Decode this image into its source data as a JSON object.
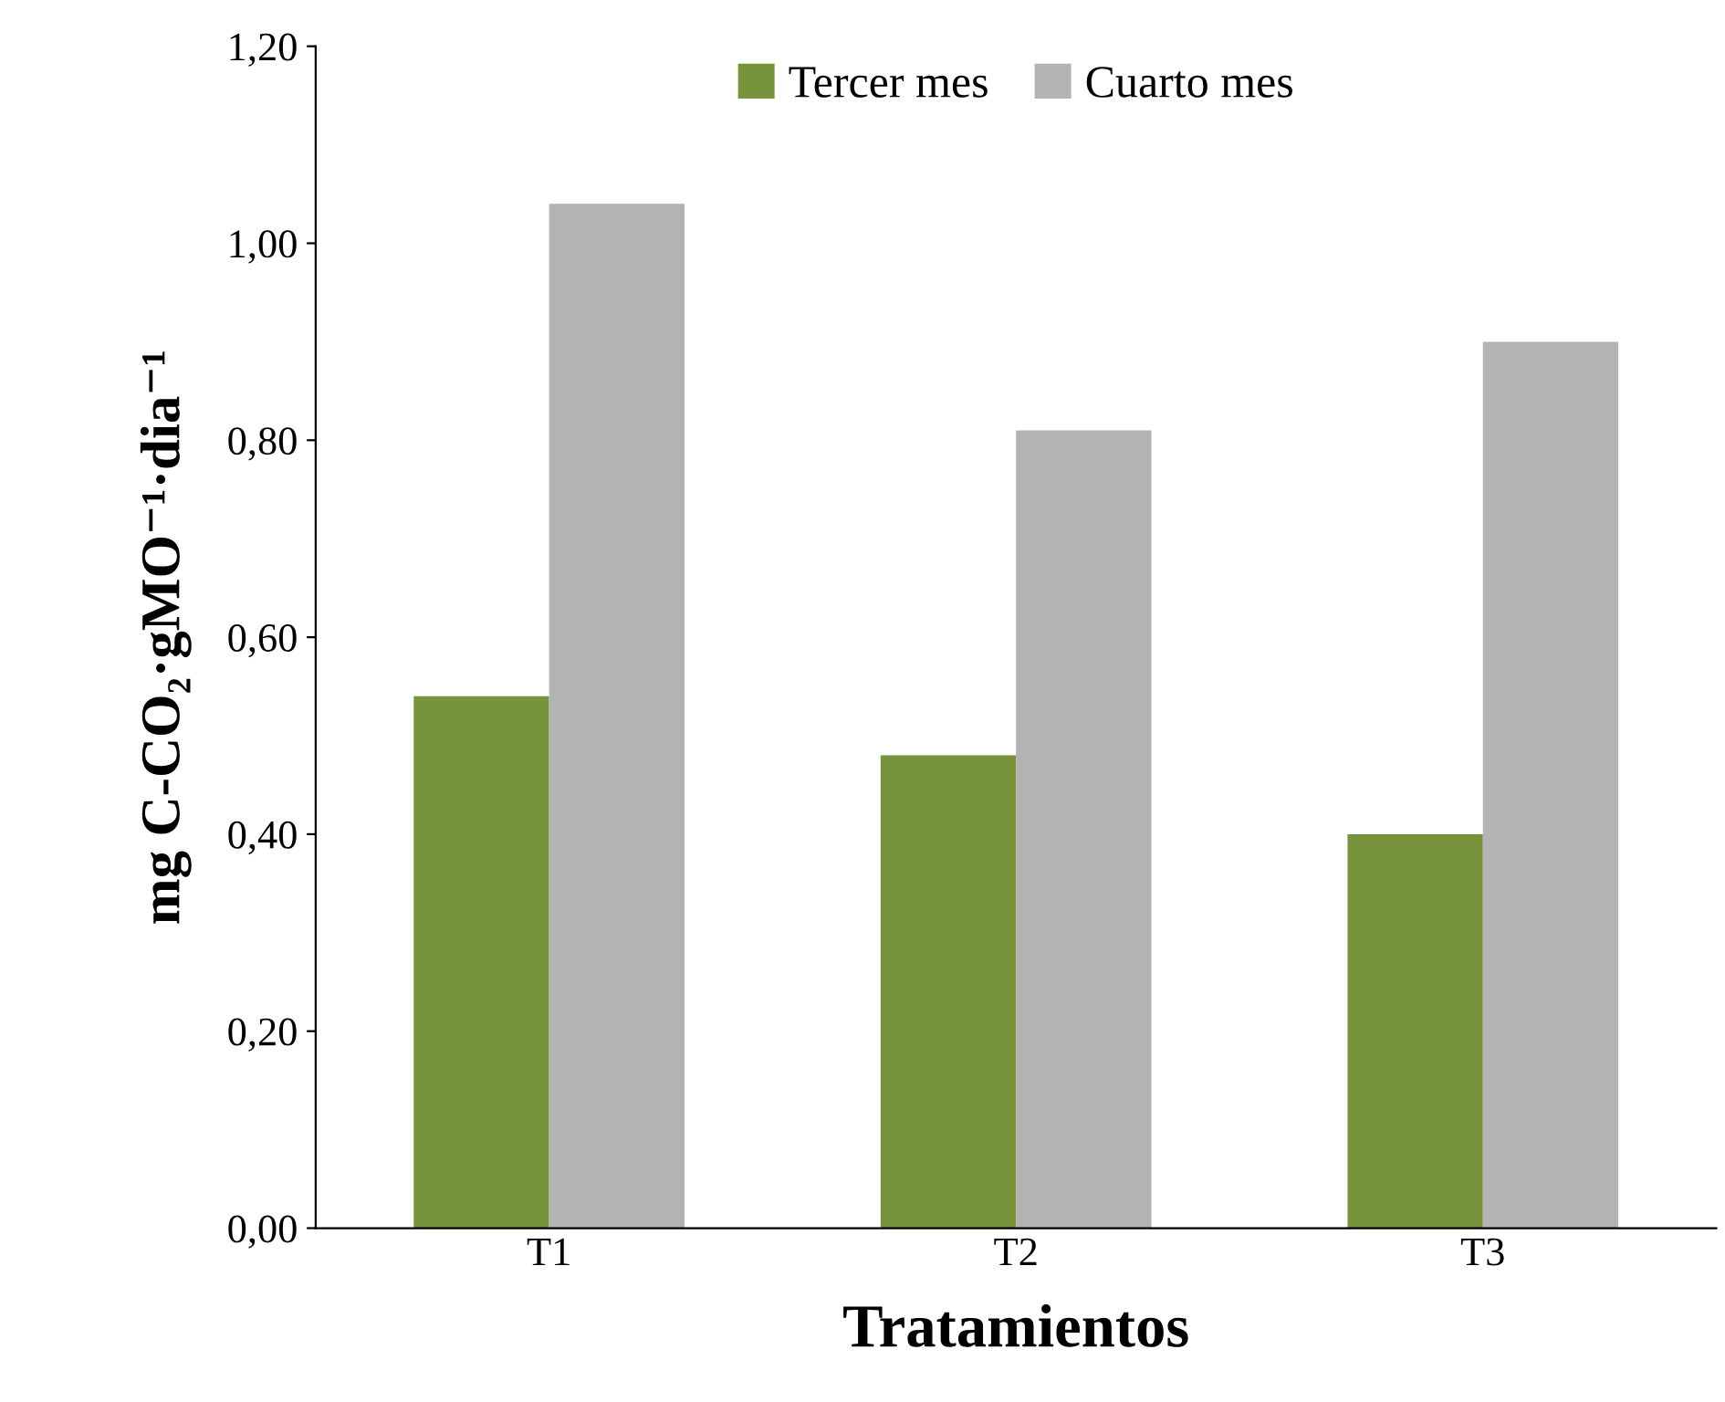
{
  "chart_data": {
    "type": "bar",
    "xlabel": "Tratamientos",
    "ylabel": "mg C-CO₂·gMO⁻¹·dia⁻¹",
    "categories": [
      "T1",
      "T2",
      "T3"
    ],
    "series": [
      {
        "name": "Tercer mes",
        "color": "#77933c",
        "values": [
          0.54,
          0.48,
          0.4
        ]
      },
      {
        "name": "Cuarto mes",
        "color": "#b3b3b3",
        "values": [
          1.04,
          0.81,
          0.9
        ]
      }
    ],
    "ylim": [
      0,
      1.2
    ],
    "yticks": [
      {
        "value": 0,
        "label": "0,00"
      },
      {
        "value": 0.2,
        "label": "0,20"
      },
      {
        "value": 0.4,
        "label": "0,40"
      },
      {
        "value": 0.6,
        "label": "0,60"
      },
      {
        "value": 0.8,
        "label": "0,80"
      },
      {
        "value": 1.0,
        "label": "1,00"
      },
      {
        "value": 1.2,
        "label": "1,20"
      }
    ],
    "grid": false,
    "legend": "top"
  }
}
